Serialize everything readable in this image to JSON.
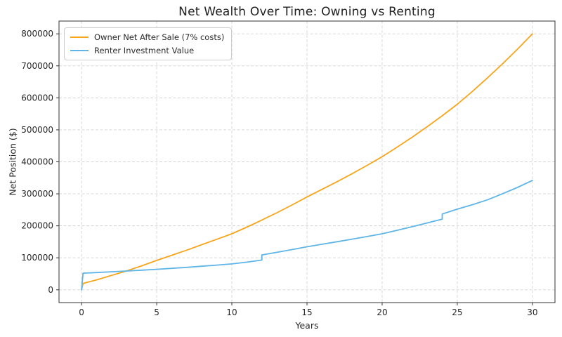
{
  "chart_data": {
    "type": "line",
    "title": "Net Wealth Over Time: Owning vs Renting",
    "xlabel": "Years",
    "ylabel": "Net Position ($)",
    "xlim": [
      -1.5,
      31.5
    ],
    "ylim": [
      -40000,
      840000
    ],
    "xticks": [
      0,
      5,
      10,
      15,
      20,
      25,
      30
    ],
    "yticks": [
      0,
      100000,
      200000,
      300000,
      400000,
      500000,
      600000,
      700000,
      800000
    ],
    "grid": true,
    "grid_style": "dashed",
    "legend_position": "upper-left",
    "background_color": "#ffffff",
    "series": [
      {
        "name": "Owner Net After Sale (7% costs)",
        "color": "#f7a51c",
        "x": [
          0,
          0.1,
          1,
          2,
          3,
          4,
          5,
          6,
          7,
          8,
          9,
          10,
          11,
          12,
          13,
          14,
          15,
          16,
          17,
          18,
          19,
          20,
          21,
          22,
          23,
          24,
          25,
          26,
          27,
          28,
          29,
          30
        ],
        "y": [
          0,
          20000,
          31000,
          45000,
          59000,
          75000,
          92000,
          108000,
          124000,
          141000,
          158000,
          175000,
          196000,
          218000,
          241000,
          265000,
          290000,
          314000,
          338000,
          363000,
          389000,
          416000,
          446000,
          477000,
          510000,
          544000,
          580000,
          620000,
          662000,
          706000,
          752000,
          800000
        ]
      },
      {
        "name": "Renter Investment Value",
        "color": "#5eb5e6",
        "x": [
          0,
          0.1,
          1,
          2,
          3,
          4,
          5,
          6,
          7,
          8,
          9,
          10,
          11,
          12,
          12,
          13,
          14,
          15,
          16,
          17,
          18,
          19,
          20,
          21,
          22,
          23,
          24,
          24,
          25,
          26,
          27,
          28,
          29,
          30
        ],
        "y": [
          0,
          52000,
          54000,
          56300,
          58700,
          61300,
          64000,
          67000,
          70200,
          73600,
          77200,
          81000,
          86500,
          93000,
          109000,
          117200,
          125600,
          134400,
          142300,
          150300,
          158400,
          166600,
          175000,
          186000,
          197300,
          209000,
          221000,
          237000,
          252000,
          266000,
          281000,
          300000,
          320000,
          342000
        ]
      }
    ],
    "annotations": {
      "renter_step_years": [
        12,
        24
      ],
      "crossover_year": 3.1,
      "crossover_value": 60000
    }
  }
}
